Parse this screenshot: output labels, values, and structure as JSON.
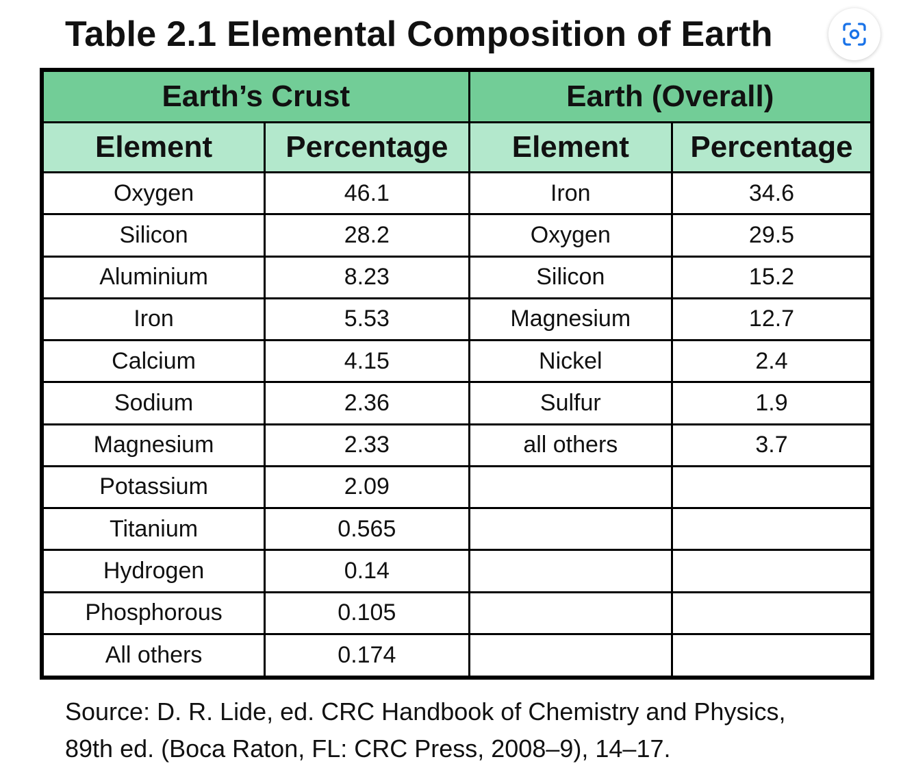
{
  "title": "Table 2.1 Elemental Composition of Earth",
  "lens_button_icon": "camera-lens-icon",
  "table": {
    "group_headers": [
      "Earth’s Crust",
      "Earth (Overall)"
    ],
    "column_headers": [
      "Element",
      "Percentage",
      "Element",
      "Percentage"
    ],
    "rows": [
      [
        "Oxygen",
        "46.1",
        "Iron",
        "34.6"
      ],
      [
        "Silicon",
        "28.2",
        "Oxygen",
        "29.5"
      ],
      [
        "Aluminium",
        "8.23",
        "Silicon",
        "15.2"
      ],
      [
        "Iron",
        "5.53",
        "Magnesium",
        "12.7"
      ],
      [
        "Calcium",
        "4.15",
        "Nickel",
        "2.4"
      ],
      [
        "Sodium",
        "2.36",
        "Sulfur",
        "1.9"
      ],
      [
        "Magnesium",
        "2.33",
        "all others",
        "3.7"
      ],
      [
        "Potassium",
        "2.09",
        "",
        ""
      ],
      [
        "Titanium",
        "0.565",
        "",
        ""
      ],
      [
        "Hydrogen",
        "0.14",
        "",
        ""
      ],
      [
        "Phosphorous",
        "0.105",
        "",
        ""
      ],
      [
        "All others",
        "0.174",
        "",
        ""
      ]
    ]
  },
  "source": {
    "line1": "Source: D. R. Lide, ed. CRC Handbook of Chemistry and Physics,",
    "line2": "89th ed. (Boca Raton, FL: CRC Press, 2008–9), 14–17."
  }
}
